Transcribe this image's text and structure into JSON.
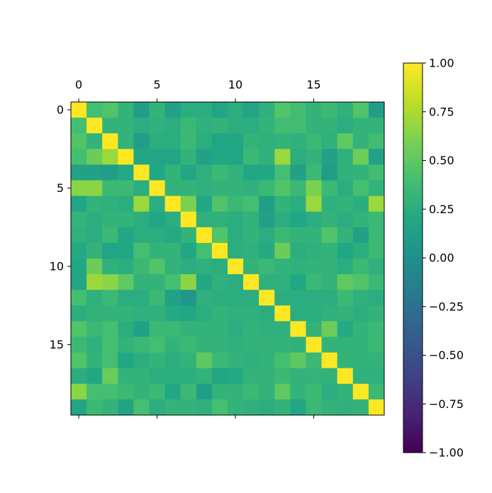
{
  "chart_data": {
    "type": "heatmap",
    "title": "",
    "xlabel": "",
    "ylabel": "",
    "rows": 20,
    "cols": 20,
    "x_tick_labels": [
      "0",
      "5",
      "10",
      "15"
    ],
    "x_tick_values": [
      0,
      5,
      10,
      15
    ],
    "y_tick_labels": [
      "0",
      "5",
      "10",
      "15"
    ],
    "y_tick_values": [
      0,
      5,
      10,
      15
    ],
    "x_ticks_position": "top",
    "colormap": "viridis",
    "color_range": [
      -1,
      1
    ],
    "colorbar": {
      "tick_values": [
        1,
        0.75,
        0.5,
        0.25,
        0,
        -0.25,
        -0.5,
        -0.75,
        -1
      ],
      "tick_labels": [
        "1.00",
        "0.75",
        "0.50",
        "0.25",
        "0.00",
        "−0.25",
        "−0.50",
        "−0.75",
        "−1.00"
      ]
    },
    "values": [
      [
        1.0,
        0.4,
        0.45,
        0.3,
        0.12,
        0.3,
        0.15,
        0.25,
        0.25,
        0.18,
        0.25,
        0.18,
        0.28,
        0.45,
        0.38,
        0.3,
        0.35,
        0.28,
        0.45,
        0.1
      ],
      [
        0.4,
        1.0,
        0.3,
        0.3,
        0.25,
        0.28,
        0.25,
        0.35,
        0.28,
        0.3,
        0.25,
        0.25,
        0.3,
        0.38,
        0.38,
        0.3,
        0.3,
        0.25,
        0.3,
        0.3
      ],
      [
        0.45,
        0.3,
        1.0,
        0.3,
        0.12,
        0.25,
        0.25,
        0.35,
        0.25,
        0.18,
        0.2,
        0.3,
        0.28,
        0.3,
        0.28,
        0.35,
        0.28,
        0.5,
        0.3,
        0.38
      ],
      [
        0.4,
        0.55,
        0.7,
        1.0,
        0.2,
        0.18,
        0.18,
        0.3,
        0.15,
        0.2,
        0.18,
        0.35,
        0.28,
        0.7,
        0.25,
        0.3,
        0.15,
        0.28,
        0.55,
        0.15
      ],
      [
        0.15,
        0.15,
        0.12,
        0.22,
        1.0,
        0.2,
        0.3,
        0.2,
        0.28,
        0.35,
        0.3,
        0.2,
        0.2,
        0.4,
        0.15,
        0.35,
        0.1,
        0.28,
        0.3,
        0.38
      ],
      [
        0.65,
        0.65,
        0.35,
        0.35,
        0.25,
        1.0,
        0.3,
        0.3,
        0.28,
        0.3,
        0.3,
        0.28,
        0.35,
        0.45,
        0.35,
        0.6,
        0.35,
        0.25,
        0.4,
        0.3
      ],
      [
        0.18,
        0.3,
        0.28,
        0.25,
        0.7,
        0.25,
        1.0,
        0.6,
        0.2,
        0.45,
        0.35,
        0.4,
        0.12,
        0.3,
        0.25,
        0.7,
        0.28,
        0.3,
        0.25,
        0.7
      ],
      [
        0.3,
        0.25,
        0.3,
        0.3,
        0.25,
        0.2,
        0.25,
        1.0,
        0.28,
        0.28,
        0.25,
        0.3,
        0.15,
        0.25,
        0.2,
        0.25,
        0.3,
        0.25,
        0.3,
        0.35
      ],
      [
        0.28,
        0.25,
        0.35,
        0.2,
        0.25,
        0.25,
        0.22,
        0.3,
        1.0,
        0.45,
        0.25,
        0.3,
        0.25,
        0.35,
        0.3,
        0.3,
        0.45,
        0.3,
        0.15,
        0.35
      ],
      [
        0.22,
        0.3,
        0.18,
        0.2,
        0.4,
        0.3,
        0.3,
        0.2,
        0.4,
        1.0,
        0.25,
        0.28,
        0.22,
        0.55,
        0.25,
        0.28,
        0.3,
        0.2,
        0.25,
        0.35
      ],
      [
        0.2,
        0.55,
        0.28,
        0.25,
        0.35,
        0.45,
        0.3,
        0.25,
        0.28,
        0.25,
        1.0,
        0.3,
        0.35,
        0.3,
        0.28,
        0.3,
        0.3,
        0.25,
        0.35,
        0.28
      ],
      [
        0.18,
        0.7,
        0.65,
        0.5,
        0.3,
        0.3,
        0.4,
        0.65,
        0.2,
        0.28,
        0.25,
        1.0,
        0.28,
        0.28,
        0.2,
        0.35,
        0.3,
        0.5,
        0.45,
        0.35
      ],
      [
        0.4,
        0.28,
        0.35,
        0.25,
        0.25,
        0.35,
        0.15,
        0.05,
        0.28,
        0.25,
        0.25,
        0.25,
        1.0,
        0.25,
        0.25,
        0.25,
        0.25,
        0.35,
        0.28,
        0.25
      ],
      [
        0.25,
        0.3,
        0.3,
        0.3,
        0.28,
        0.28,
        0.22,
        0.2,
        0.25,
        0.3,
        0.28,
        0.28,
        0.25,
        1.0,
        0.25,
        0.25,
        0.28,
        0.3,
        0.25,
        0.3
      ],
      [
        0.45,
        0.35,
        0.4,
        0.25,
        0.15,
        0.35,
        0.35,
        0.3,
        0.3,
        0.3,
        0.25,
        0.3,
        0.28,
        0.28,
        1.0,
        0.3,
        0.55,
        0.22,
        0.3,
        0.35
      ],
      [
        0.35,
        0.28,
        0.4,
        0.3,
        0.35,
        0.4,
        0.3,
        0.35,
        0.3,
        0.3,
        0.28,
        0.3,
        0.3,
        0.3,
        0.28,
        1.0,
        0.3,
        0.3,
        0.3,
        0.35
      ],
      [
        0.45,
        0.3,
        0.4,
        0.2,
        0.25,
        0.3,
        0.25,
        0.3,
        0.5,
        0.35,
        0.3,
        0.28,
        0.3,
        0.4,
        0.5,
        0.35,
        1.0,
        0.3,
        0.3,
        0.3
      ],
      [
        0.25,
        0.2,
        0.55,
        0.3,
        0.3,
        0.25,
        0.25,
        0.25,
        0.3,
        0.2,
        0.22,
        0.3,
        0.3,
        0.35,
        0.3,
        0.3,
        0.3,
        1.0,
        0.28,
        0.28
      ],
      [
        0.65,
        0.4,
        0.4,
        0.35,
        0.3,
        0.35,
        0.2,
        0.35,
        0.12,
        0.3,
        0.3,
        0.35,
        0.3,
        0.5,
        0.3,
        0.35,
        0.25,
        0.3,
        1.0,
        0.35
      ],
      [
        0.18,
        0.35,
        0.3,
        0.18,
        0.4,
        0.25,
        0.3,
        0.3,
        0.28,
        0.4,
        0.3,
        0.28,
        0.25,
        0.3,
        0.2,
        0.35,
        0.3,
        0.28,
        0.3,
        1.0
      ]
    ]
  }
}
